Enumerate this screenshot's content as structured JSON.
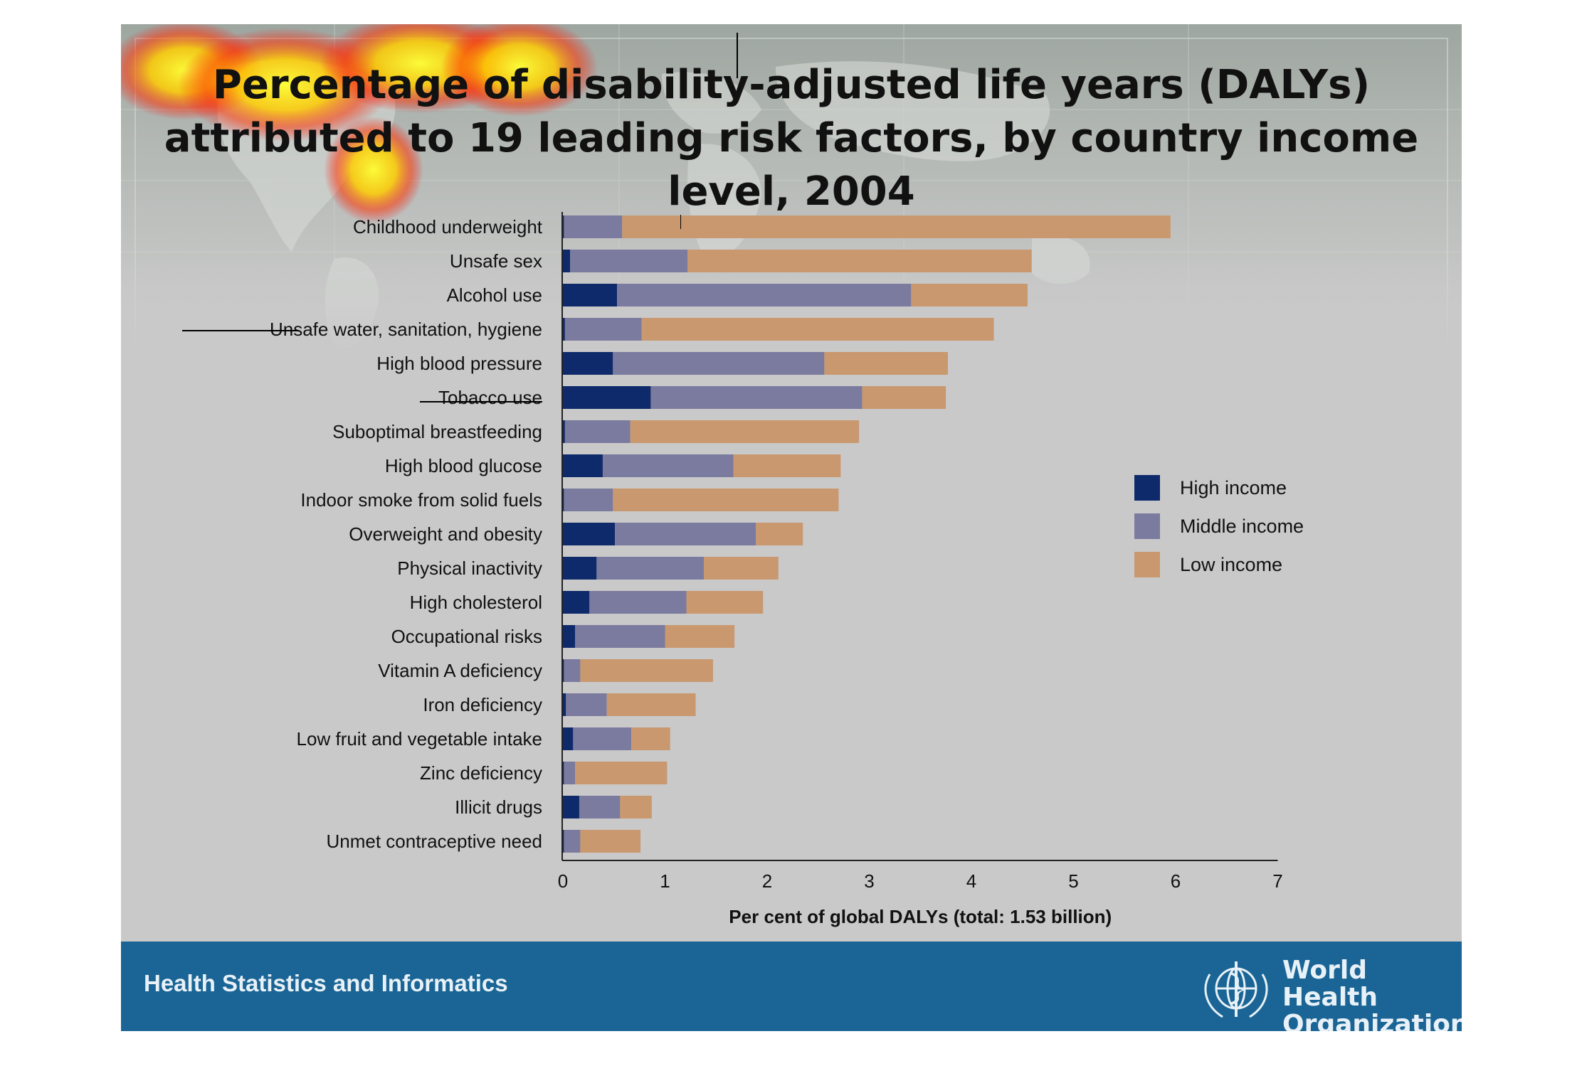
{
  "slide": {
    "title": "Percentage of disability-adjusted life years (DALYs) attributed to 19 leading risk factors, by country income level, 2004",
    "footer_label": "Health Statistics and Informatics",
    "organization_line1": "World Health",
    "organization_line2": "Organization",
    "colors": {
      "background": "#c9c9c9",
      "footer": "#1a6595",
      "heatmap_hot": "#ffff33",
      "heatmap_warm": "#ff2200"
    },
    "icons": [
      "who-emblem-icon"
    ]
  },
  "chart_data": {
    "type": "bar",
    "orientation": "horizontal",
    "stacked": true,
    "categories": [
      "Childhood underweight",
      "Unsafe sex",
      "Alcohol use",
      "Unsafe water, sanitation, hygiene",
      "High blood pressure",
      "Tobacco use",
      "Suboptimal breastfeeding",
      "High blood glucose",
      "Indoor smoke from solid fuels",
      "Overweight and obesity",
      "Physical inactivity",
      "High cholesterol",
      "Occupational risks",
      "Vitamin A deficiency",
      "Iron deficiency",
      "Low fruit and vegetable intake",
      "Zinc deficiency",
      "Illicit drugs",
      "Unmet contraceptive need"
    ],
    "series": [
      {
        "name": "High income",
        "color": "#0f2a6b",
        "values": [
          0.01,
          0.07,
          0.53,
          0.02,
          0.49,
          0.86,
          0.02,
          0.39,
          0.01,
          0.51,
          0.33,
          0.26,
          0.12,
          0.01,
          0.03,
          0.1,
          0.01,
          0.16,
          0.01
        ]
      },
      {
        "name": "Middle income",
        "color": "#7b7a9f",
        "values": [
          0.57,
          1.15,
          2.88,
          0.75,
          2.07,
          2.07,
          0.64,
          1.28,
          0.48,
          1.38,
          1.05,
          0.95,
          0.88,
          0.16,
          0.4,
          0.57,
          0.11,
          0.4,
          0.16
        ]
      },
      {
        "name": "Low income",
        "color": "#c9986f",
        "values": [
          5.37,
          3.37,
          1.14,
          3.45,
          1.21,
          0.82,
          2.24,
          1.05,
          2.21,
          0.46,
          0.73,
          0.75,
          0.68,
          1.3,
          0.87,
          0.38,
          0.9,
          0.31,
          0.59
        ]
      }
    ],
    "xlabel": "Per cent of global DALYs (total: 1.53 billion)",
    "ylabel": "",
    "xlim": [
      0,
      7
    ],
    "xticks": [
      "0",
      "1",
      "2",
      "3",
      "4",
      "5",
      "6",
      "7"
    ],
    "grid": false,
    "legend": [
      "High income",
      "Middle income",
      "Low income"
    ],
    "legend_position": "right"
  }
}
